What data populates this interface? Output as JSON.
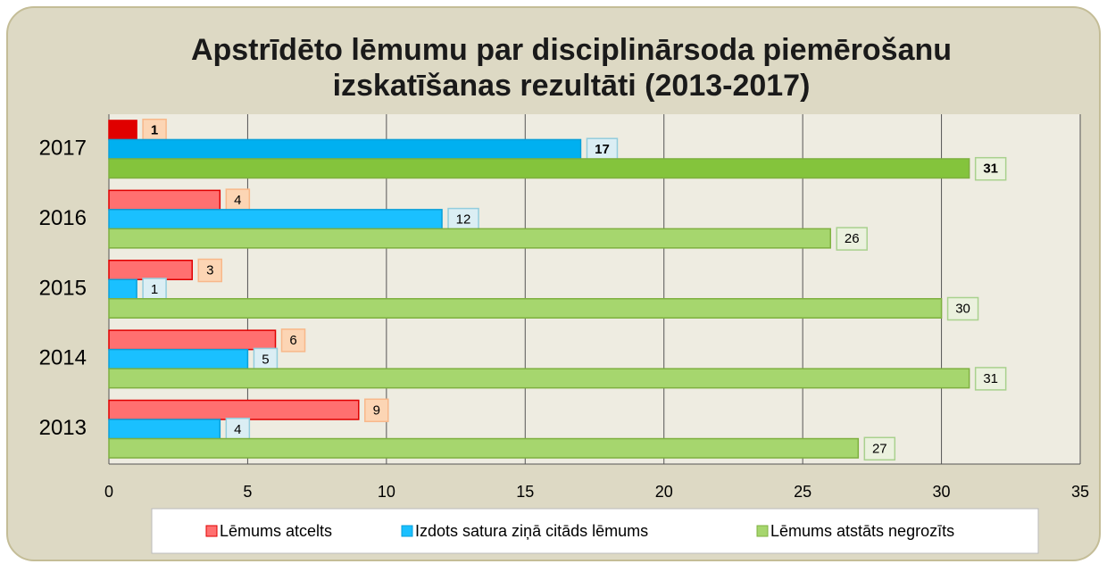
{
  "chart_data": {
    "type": "hbar",
    "title": "Apstrīdēto lēmumu par disciplinārsoda piemērošanu izskatīšanas rezultāti (2013-2017)",
    "categories": [
      "2017",
      "2016",
      "2015",
      "2014",
      "2013"
    ],
    "series": [
      {
        "name": "Lēmums atcelts",
        "color": "#ff7070",
        "border": "#e00000",
        "label_fill": "#fcd5b4",
        "label_border": "#f8b88a",
        "colors": [
          "#e00000",
          "#ff7070",
          "#ff7070",
          "#ff7070",
          "#ff7070"
        ],
        "values": [
          1,
          4,
          3,
          6,
          9
        ]
      },
      {
        "name": "Izdots satura ziņā citāds lēmums",
        "color": "#1ac0ff",
        "border": "#0a9fd8",
        "label_fill": "#dbeef4",
        "label_border": "#93cddd",
        "colors": [
          "#00b0f0",
          "#1ac0ff",
          "#1ac0ff",
          "#1ac0ff",
          "#1ac0ff"
        ],
        "values": [
          17,
          12,
          1,
          5,
          4
        ]
      },
      {
        "name": "Lēmums atstāts negrozīts",
        "color": "#a6d66e",
        "border": "#7fb040",
        "label_fill": "#ebf1de",
        "label_border": "#a9d18e",
        "colors": [
          "#84c43c",
          "#a6d66e",
          "#a6d66e",
          "#a6d66e",
          "#a6d66e"
        ],
        "values": [
          31,
          26,
          30,
          31,
          27
        ]
      }
    ],
    "xlim": [
      0,
      35
    ],
    "xticks": [
      0,
      5,
      10,
      15,
      20,
      25,
      30,
      35
    ],
    "grid": true,
    "legend": "bottom"
  }
}
